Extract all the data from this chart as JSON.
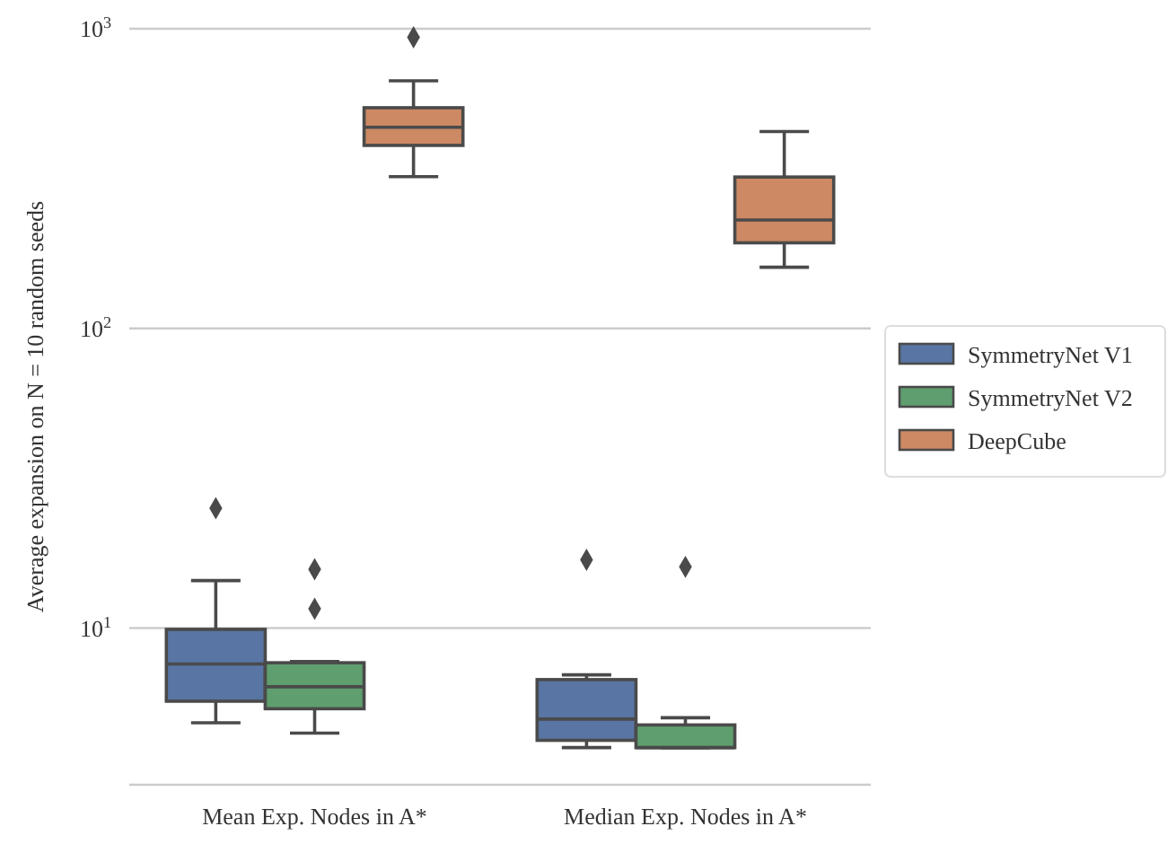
{
  "chart_data": {
    "type": "box",
    "ylabel": "Average expansion on N = 10 random seeds",
    "categories": [
      "Mean Exp. Nodes in A*",
      "Median Exp. Nodes in A*"
    ],
    "log": true,
    "ylim": [
      3,
      1000
    ],
    "yticks": [
      {
        "value": 10,
        "label": "10$^{1}$"
      },
      {
        "value": 100,
        "label": "10$^{2}$"
      },
      {
        "value": 1000,
        "label": "10$^{3}$"
      }
    ],
    "grid": "y",
    "legend": "right",
    "marker": "diamond",
    "series": [
      {
        "name": "SymmetryNet V1",
        "color": "#5975a4",
        "boxes": [
          {
            "low": 4.83,
            "q1": 5.7,
            "median": 7.59,
            "q3": 9.9,
            "high": 14.4,
            "outliers": [
              25.1
            ]
          },
          {
            "low": 3.99,
            "q1": 4.22,
            "median": 4.97,
            "q3": 6.73,
            "high": 6.98,
            "outliers": [
              16.9
            ]
          }
        ]
      },
      {
        "name": "SymmetryNet V2",
        "color": "#5f9e6e",
        "boxes": [
          {
            "low": 4.46,
            "q1": 5.38,
            "median": 6.37,
            "q3": 7.66,
            "high": 7.73,
            "outliers": [
              11.6,
              15.7
            ]
          },
          {
            "low": 3.99,
            "q1": 3.99,
            "median": 3.99,
            "q3": 4.75,
            "high": 5.02,
            "outliers": [
              16
            ]
          }
        ]
      },
      {
        "name": "DeepCube",
        "color": "#cc8963",
        "boxes": [
          {
            "low": 321,
            "q1": 408,
            "median": 469,
            "q3": 545,
            "high": 670,
            "outliers": [
              937
            ]
          },
          {
            "low": 160,
            "q1": 193,
            "median": 230,
            "q3": 320,
            "high": 454
          }
        ]
      }
    ]
  }
}
